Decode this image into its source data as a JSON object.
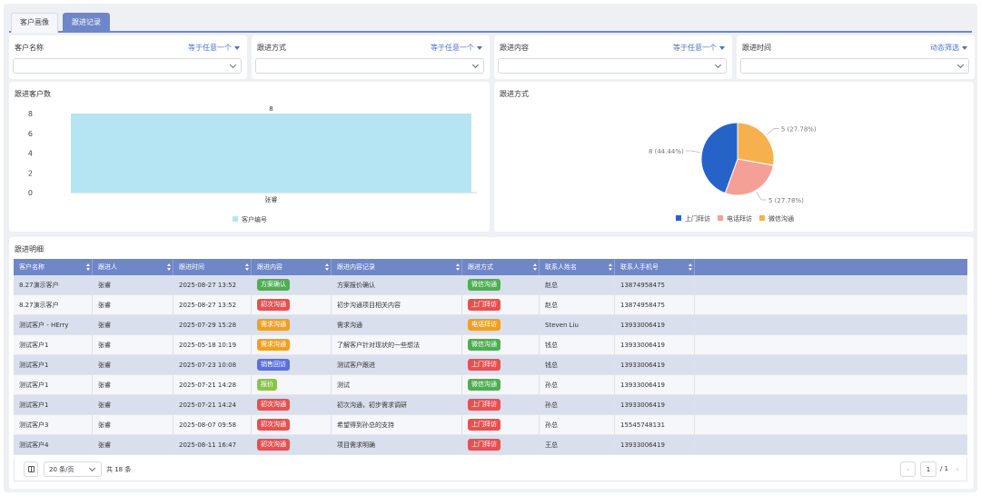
{
  "tabs": [
    {
      "label": "客户画像",
      "active": false
    },
    {
      "label": "跟进记录",
      "active": true
    }
  ],
  "filters": [
    {
      "label": "客户名称",
      "operator": "等于任意一个",
      "value": ""
    },
    {
      "label": "跟进方式",
      "operator": "等于任意一个",
      "value": ""
    },
    {
      "label": "跟进内容",
      "operator": "等于任意一个",
      "value": ""
    },
    {
      "label": "跟进时间",
      "operator": "动态筛选",
      "value": ""
    }
  ],
  "bar_panel": {
    "title": "跟进客户数"
  },
  "pie_panel": {
    "title": "跟进方式"
  },
  "chart_data": [
    {
      "type": "bar",
      "title": "跟进客户数",
      "categories": [
        "张睿"
      ],
      "series": [
        {
          "name": "客户编号",
          "values": [
            8
          ],
          "color": "#b5e5f2"
        }
      ],
      "yticks": [
        0,
        2,
        4,
        6,
        8
      ],
      "ylim": [
        0,
        8
      ],
      "data_labels": true,
      "legend": "bottom-center",
      "grid": false
    },
    {
      "type": "pie",
      "title": "跟进方式",
      "slices": [
        {
          "name": "上门拜访",
          "value": 8,
          "label": "8 (44.44%)",
          "color": "#2563c9"
        },
        {
          "name": "电话拜访",
          "value": 5,
          "label": "5 (27.78%)",
          "color": "#f5a096"
        },
        {
          "name": "微信沟通",
          "value": 5,
          "label": "5 (27.78%)",
          "color": "#f6b04d"
        }
      ],
      "legend": "bottom-center"
    }
  ],
  "detail_panel": {
    "title": "跟进明细"
  },
  "table": {
    "columns": [
      "客户名称",
      "跟进人",
      "跟进时间",
      "跟进内容",
      "跟进内容记录",
      "跟进方式",
      "联系人姓名",
      "联系人手机号"
    ],
    "rows": [
      {
        "customer": "8.27演示客户",
        "owner": "张睿",
        "time": "2025-08-27 13:52",
        "content": "方案确认",
        "content_color": "#4caf50",
        "record": "方案报价确认",
        "method": "微信沟通",
        "method_color": "#4caf50",
        "contact": "赵总",
        "phone": "13874958475"
      },
      {
        "customer": "8.27演示客户",
        "owner": "张睿",
        "time": "2025-08-27 13:52",
        "content": "初次沟通",
        "content_color": "#e8504f",
        "record": "初步沟通项目相关内容",
        "method": "上门拜访",
        "method_color": "#e8504f",
        "contact": "赵总",
        "phone": "13874958475"
      },
      {
        "customer": "测试客户 - HErry",
        "owner": "张睿",
        "time": "2025-07-29 15:28",
        "content": "需求沟通",
        "content_color": "#f0a020",
        "record": "需求沟通",
        "method": "电话拜访",
        "method_color": "#f0a020",
        "contact": "Steven Liu",
        "phone": "13933006419"
      },
      {
        "customer": "测试客户1",
        "owner": "张睿",
        "time": "2025-05-18 10:19",
        "content": "需求沟通",
        "content_color": "#f0a020",
        "record": "了解客户针对现状的一些想法",
        "method": "微信沟通",
        "method_color": "#4caf50",
        "contact": "钱总",
        "phone": "13933006419"
      },
      {
        "customer": "测试客户1",
        "owner": "张睿",
        "time": "2025-07-23 10:08",
        "content": "销售回访",
        "content_color": "#5b6fe0",
        "record": "测试客户跟进",
        "method": "上门拜访",
        "method_color": "#e8504f",
        "contact": "钱总",
        "phone": "13933006419"
      },
      {
        "customer": "测试客户1",
        "owner": "张睿",
        "time": "2025-07-21 14:28",
        "content": "报价",
        "content_color": "#8bc34a",
        "record": "测试",
        "method": "微信沟通",
        "method_color": "#4caf50",
        "contact": "孙总",
        "phone": "13933006419"
      },
      {
        "customer": "测试客户1",
        "owner": "张睿",
        "time": "2025-07-21 14:24",
        "content": "初次沟通",
        "content_color": "#e8504f",
        "record": "初次沟通，初步需求调研",
        "method": "上门拜访",
        "method_color": "#e8504f",
        "contact": "孙总",
        "phone": "13933006419"
      },
      {
        "customer": "测试客户3",
        "owner": "张睿",
        "time": "2025-08-07 09:58",
        "content": "初次沟通",
        "content_color": "#e8504f",
        "record": "希望得到孙总的支持",
        "method": "上门拜访",
        "method_color": "#e8504f",
        "contact": "孙总",
        "phone": "15545748131"
      },
      {
        "customer": "测试客户4",
        "owner": "张睿",
        "time": "2025-08-11 16:47",
        "content": "初次沟通",
        "content_color": "#e8504f",
        "record": "项目需求明确",
        "method": "上门拜访",
        "method_color": "#e8504f",
        "contact": "王总",
        "phone": "13933006419"
      }
    ]
  },
  "pagination": {
    "page_size": "20 条/页",
    "total": "共 18 条",
    "current_page": "1",
    "total_pages": "/ 1"
  }
}
